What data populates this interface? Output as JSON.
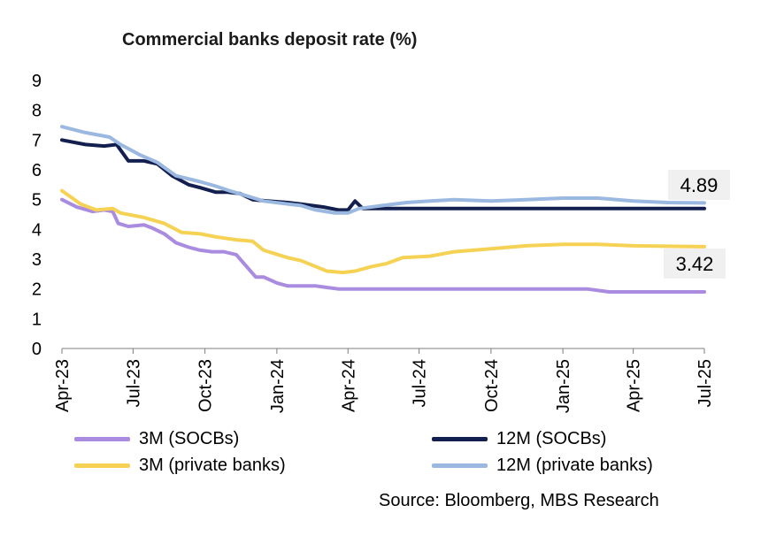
{
  "chart_data": {
    "type": "line",
    "title": "Commercial banks deposit rate (%)",
    "xlabel": "",
    "ylabel": "",
    "ylim": [
      0,
      9
    ],
    "yticks": [
      0,
      1,
      2,
      3,
      4,
      5,
      6,
      7,
      8,
      9
    ],
    "x_tick_labels": [
      "Apr-23",
      "Jul-23",
      "Oct-23",
      "Jan-24",
      "Apr-24",
      "Jul-24",
      "Oct-24",
      "Jan-25",
      "Apr-25",
      "Jul-25"
    ],
    "x_tick_dates": [
      "2023-04-01",
      "2023-07-01",
      "2023-10-01",
      "2024-01-01",
      "2024-04-01",
      "2024-07-01",
      "2024-10-01",
      "2025-01-01",
      "2025-04-01",
      "2025-07-01"
    ],
    "grid": false,
    "legend_position": "bottom",
    "series": [
      {
        "name": "3M (SOCBs)",
        "color": "#a98be0",
        "x": [
          "2023-04-01",
          "2023-04-20",
          "2023-05-10",
          "2023-05-25",
          "2023-06-05",
          "2023-06-12",
          "2023-06-25",
          "2023-07-15",
          "2023-07-25",
          "2023-08-10",
          "2023-08-25",
          "2023-09-10",
          "2023-09-25",
          "2023-10-10",
          "2023-10-25",
          "2023-11-10",
          "2023-11-20",
          "2023-12-05",
          "2023-12-15",
          "2024-01-01",
          "2024-01-15",
          "2024-02-01",
          "2024-02-20",
          "2024-03-05",
          "2024-03-20",
          "2024-04-10",
          "2024-05-01",
          "2024-07-01",
          "2024-10-01",
          "2025-01-01",
          "2025-02-01",
          "2025-03-01",
          "2025-04-01",
          "2025-07-01"
        ],
        "values": [
          5.0,
          4.75,
          4.6,
          4.65,
          4.6,
          4.2,
          4.1,
          4.15,
          4.05,
          3.85,
          3.55,
          3.4,
          3.3,
          3.25,
          3.25,
          3.15,
          2.85,
          2.4,
          2.4,
          2.2,
          2.1,
          2.1,
          2.1,
          2.05,
          2.0,
          2.0,
          2.0,
          2.0,
          2.0,
          2.0,
          2.0,
          1.9,
          1.9,
          1.9
        ]
      },
      {
        "name": "12M (SOCBs)",
        "color": "#13204f",
        "x": [
          "2023-04-01",
          "2023-05-01",
          "2023-05-25",
          "2023-06-10",
          "2023-06-25",
          "2023-07-15",
          "2023-08-01",
          "2023-08-20",
          "2023-09-10",
          "2023-09-25",
          "2023-10-15",
          "2023-10-30",
          "2023-11-15",
          "2023-12-01",
          "2023-12-20",
          "2024-01-15",
          "2024-02-01",
          "2024-03-01",
          "2024-03-20",
          "2024-04-01",
          "2024-04-10",
          "2024-04-20",
          "2024-05-01",
          "2024-07-01",
          "2024-10-01",
          "2025-01-01",
          "2025-04-01",
          "2025-07-01"
        ],
        "values": [
          7.0,
          6.85,
          6.8,
          6.85,
          6.3,
          6.3,
          6.2,
          5.8,
          5.5,
          5.4,
          5.25,
          5.25,
          5.2,
          5.0,
          4.95,
          4.9,
          4.85,
          4.75,
          4.65,
          4.65,
          4.95,
          4.7,
          4.7,
          4.7,
          4.7,
          4.7,
          4.7,
          4.7
        ]
      },
      {
        "name": "3M (private banks)",
        "color": "#f5d254",
        "x": [
          "2023-04-01",
          "2023-04-25",
          "2023-05-15",
          "2023-06-05",
          "2023-06-15",
          "2023-07-15",
          "2023-08-10",
          "2023-09-01",
          "2023-09-25",
          "2023-10-15",
          "2023-11-10",
          "2023-12-01",
          "2023-12-15",
          "2024-01-15",
          "2024-02-01",
          "2024-02-15",
          "2024-03-05",
          "2024-03-25",
          "2024-04-10",
          "2024-05-01",
          "2024-05-20",
          "2024-06-10",
          "2024-07-15",
          "2024-08-15",
          "2024-10-01",
          "2024-11-15",
          "2025-01-01",
          "2025-02-15",
          "2025-04-01",
          "2025-07-01"
        ],
        "values": [
          5.3,
          4.85,
          4.65,
          4.7,
          4.55,
          4.4,
          4.2,
          3.9,
          3.85,
          3.75,
          3.65,
          3.6,
          3.3,
          3.05,
          2.95,
          2.8,
          2.6,
          2.55,
          2.6,
          2.75,
          2.85,
          3.05,
          3.1,
          3.25,
          3.35,
          3.45,
          3.5,
          3.5,
          3.45,
          3.42
        ]
      },
      {
        "name": "12M (private banks)",
        "color": "#9bb8e0",
        "x": [
          "2023-04-01",
          "2023-05-01",
          "2023-06-01",
          "2023-06-15",
          "2023-07-10",
          "2023-08-01",
          "2023-08-25",
          "2023-09-25",
          "2023-10-15",
          "2023-11-01",
          "2023-11-20",
          "2023-12-15",
          "2024-01-15",
          "2024-02-01",
          "2024-02-20",
          "2024-03-15",
          "2024-04-01",
          "2024-04-15",
          "2024-05-15",
          "2024-06-15",
          "2024-07-15",
          "2024-08-15",
          "2024-10-01",
          "2024-11-15",
          "2025-01-01",
          "2025-02-15",
          "2025-04-01",
          "2025-05-15",
          "2025-07-01"
        ],
        "values": [
          7.45,
          7.25,
          7.1,
          6.85,
          6.5,
          6.25,
          5.8,
          5.6,
          5.45,
          5.3,
          5.15,
          4.95,
          4.85,
          4.8,
          4.65,
          4.55,
          4.55,
          4.7,
          4.8,
          4.9,
          4.95,
          5.0,
          4.95,
          5.0,
          5.05,
          5.05,
          4.95,
          4.9,
          4.89
        ]
      }
    ],
    "annotations": [
      {
        "text": "4.89",
        "series": "12M (private banks)",
        "value": 4.89
      },
      {
        "text": "3.42",
        "series": "3M (private banks)",
        "value": 3.42
      }
    ],
    "source": "Source: Bloomberg, MBS Research"
  }
}
